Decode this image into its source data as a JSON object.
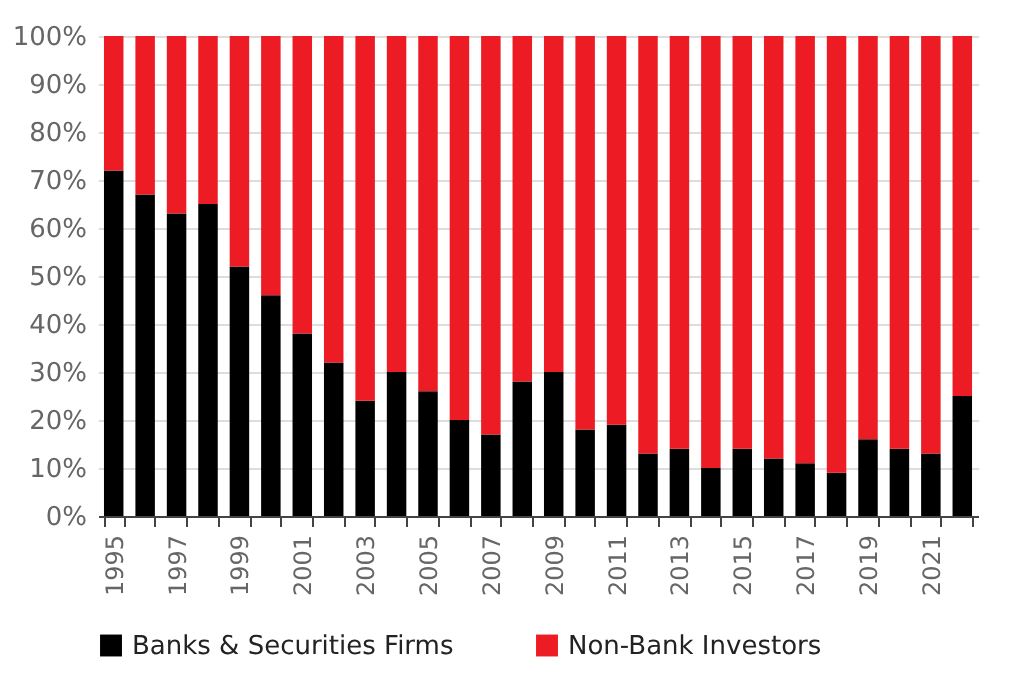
{
  "chart_data": {
    "type": "bar",
    "stacked": true,
    "categories": [
      "1995",
      null,
      "1997",
      null,
      "1999",
      null,
      "2001",
      null,
      "2003",
      null,
      "2005",
      null,
      "2007",
      null,
      "2009",
      null,
      "2011",
      null,
      "2013",
      null,
      "2015",
      null,
      "2017",
      null,
      "2019",
      null,
      "2021",
      null
    ],
    "series": [
      {
        "name": "Banks & Securities Firms",
        "color": "#000000",
        "values": [
          72,
          67,
          63,
          65,
          52,
          46,
          38,
          32,
          24,
          30,
          26,
          20,
          17,
          28,
          30,
          18,
          19,
          13,
          14,
          10,
          14,
          12,
          11,
          9,
          16,
          14,
          13,
          25
        ]
      },
      {
        "name": "Non-Bank Investors",
        "color": "#ed1c24",
        "values": [
          28,
          33,
          37,
          35,
          48,
          54,
          62,
          68,
          76,
          70,
          74,
          80,
          83,
          72,
          70,
          82,
          81,
          87,
          86,
          90,
          86,
          88,
          89,
          91,
          84,
          86,
          87,
          75
        ]
      }
    ],
    "ylim": [
      0,
      100
    ],
    "yticks": [
      {
        "value": 0,
        "label": "0%"
      },
      {
        "value": 10,
        "label": "10%"
      },
      {
        "value": 20,
        "label": "20%"
      },
      {
        "value": 30,
        "label": "30%"
      },
      {
        "value": 40,
        "label": "40%"
      },
      {
        "value": 50,
        "label": "50%"
      },
      {
        "value": 60,
        "label": "60%"
      },
      {
        "value": 70,
        "label": "70%"
      },
      {
        "value": 80,
        "label": "80%"
      },
      {
        "value": 90,
        "label": "90%"
      },
      {
        "value": 100,
        "label": "100%"
      }
    ],
    "grid": "y",
    "legend": "bottom"
  }
}
